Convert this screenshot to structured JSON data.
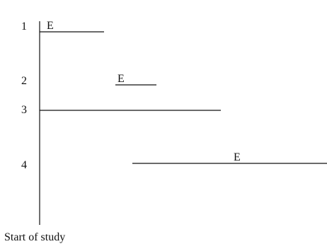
{
  "diagram": {
    "axis_label": "Start of study",
    "rows": [
      {
        "id": "1",
        "label": "1",
        "event": "E"
      },
      {
        "id": "2",
        "label": "2",
        "event": "E"
      },
      {
        "id": "3",
        "label": "3",
        "event": ""
      },
      {
        "id": "4",
        "label": "4",
        "event": "E"
      }
    ]
  }
}
